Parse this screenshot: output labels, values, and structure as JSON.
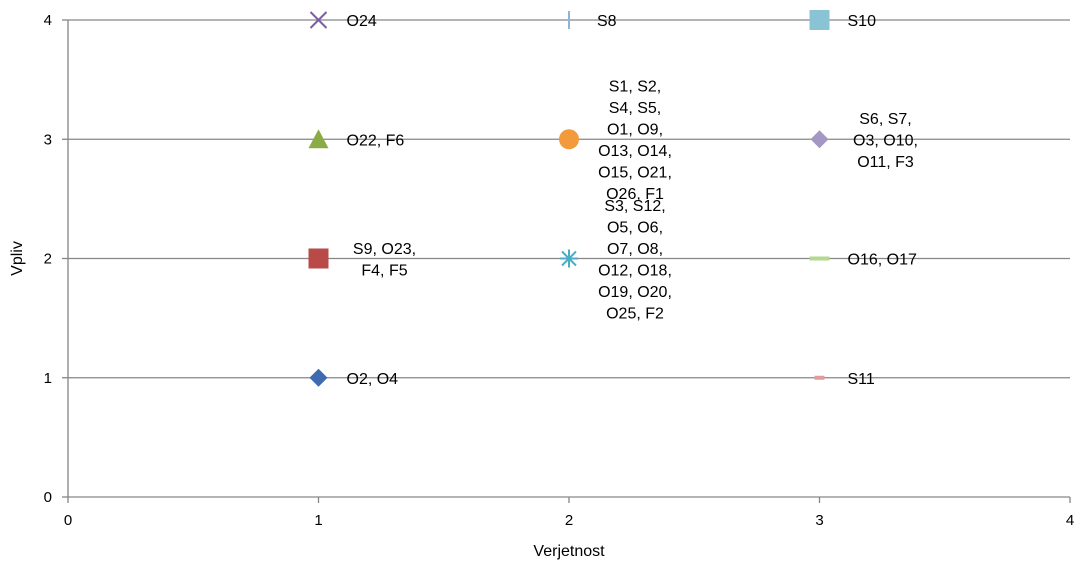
{
  "chart_data": {
    "type": "scatter",
    "xlabel": "Verjetnost",
    "ylabel": "Vpliv",
    "xlim": [
      0,
      4
    ],
    "ylim": [
      0,
      4
    ],
    "x_ticks": [
      "0",
      "1",
      "2",
      "3",
      "4"
    ],
    "y_ticks": [
      "0",
      "1",
      "2",
      "3",
      "4"
    ],
    "grid": "horizontal",
    "legend": "none",
    "points": [
      {
        "x": 1,
        "y": 4,
        "marker": "x",
        "color": "#7b5ea7",
        "label_lines": [
          "O24"
        ],
        "label_side": "right"
      },
      {
        "x": 2,
        "y": 4,
        "marker": "vbar",
        "color": "#8fb3dc",
        "label_lines": [
          "S8"
        ],
        "label_side": "right"
      },
      {
        "x": 3,
        "y": 4,
        "marker": "square",
        "color": "#8bc3d6",
        "label_lines": [
          "S10"
        ],
        "label_side": "right"
      },
      {
        "x": 1,
        "y": 3,
        "marker": "triangle",
        "color": "#8bab45",
        "label_lines": [
          "O22, F6"
        ],
        "label_side": "right"
      },
      {
        "x": 2,
        "y": 3,
        "marker": "circle",
        "color": "#f29a3c",
        "label_lines": [
          "S1, S2,",
          "S4, S5,",
          "O1, O9,",
          "O13, O14,",
          "O15, O21,",
          "O26, F1"
        ],
        "label_side": "center"
      },
      {
        "x": 3,
        "y": 3,
        "marker": "diamond",
        "color": "#a597c3",
        "label_lines": [
          "S6, S7,",
          "O3, O10,",
          "O11, F3"
        ],
        "label_side": "center"
      },
      {
        "x": 1,
        "y": 2,
        "marker": "square",
        "color": "#b94a48",
        "label_lines": [
          "S9, O23,",
          "F4, F5"
        ],
        "label_side": "center"
      },
      {
        "x": 2,
        "y": 2,
        "marker": "star",
        "color": "#4bacc6",
        "label_lines": [
          "S3, S12,",
          "O5, O6,",
          "O7, O8,",
          "O12, O18,",
          "O19, O20,",
          "O25, F2"
        ],
        "label_side": "center"
      },
      {
        "x": 3,
        "y": 2,
        "marker": "hbar",
        "color": "#b3d88f",
        "label_lines": [
          "O16, O17"
        ],
        "label_side": "right"
      },
      {
        "x": 1,
        "y": 1,
        "marker": "diamond",
        "color": "#3e6bb0",
        "label_lines": [
          "O2, O4"
        ],
        "label_side": "right"
      },
      {
        "x": 3,
        "y": 1,
        "marker": "hbar",
        "color": "#e39a9a",
        "label_lines": [
          "S11"
        ],
        "label_side": "right"
      }
    ]
  }
}
